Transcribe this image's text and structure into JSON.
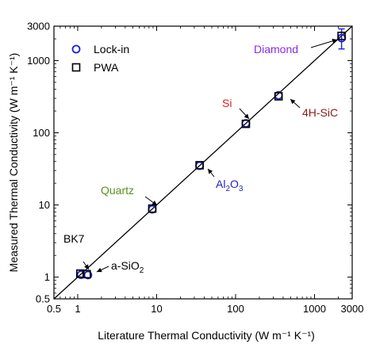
{
  "chart_data": {
    "type": "scatter",
    "xlabel": "Literature Thermal Conductivity (W m⁻¹ K⁻¹)",
    "ylabel": "Measured Thermal Conductivity (W m⁻¹ K⁻¹)",
    "xscale": "log",
    "yscale": "log",
    "xlim": [
      0.5,
      3000
    ],
    "ylim": [
      0.5,
      3000
    ],
    "xticks": [
      0.5,
      1,
      10,
      100,
      1000,
      3000
    ],
    "yticks": [
      0.5,
      1,
      10,
      100,
      1000,
      3000
    ],
    "xtick_labels": [
      "0.5",
      "1",
      "10",
      "100",
      "1000",
      "3000"
    ],
    "ytick_labels": [
      "0.5",
      "1",
      "10",
      "100",
      "1000",
      "3000"
    ],
    "grid": false,
    "legend_position": "top-left",
    "reference_line": {
      "x": [
        0.5,
        3000
      ],
      "y": [
        0.5,
        3000
      ]
    },
    "series": [
      {
        "name": "Lock-in",
        "marker": "circle",
        "color": "#1f1fd6",
        "points": [
          {
            "material": "BK7",
            "x": 1.1,
            "y": 1.08
          },
          {
            "material": "a-SiO2",
            "x": 1.35,
            "y": 1.07
          },
          {
            "material": "Quartz",
            "x": 8.8,
            "y": 8.7
          },
          {
            "material": "Al2O3",
            "x": 35,
            "y": 35
          },
          {
            "material": "Si",
            "x": 135,
            "y": 135
          },
          {
            "material": "4H-SiC",
            "x": 350,
            "y": 330
          },
          {
            "material": "Diamond",
            "x": 2200,
            "y": 2050,
            "yerr": [
              600,
              700
            ]
          }
        ]
      },
      {
        "name": "PWA",
        "marker": "square",
        "color": "#000000",
        "points": [
          {
            "material": "BK7",
            "x": 1.08,
            "y": 1.12
          },
          {
            "material": "a-SiO2",
            "x": 1.3,
            "y": 1.1
          },
          {
            "material": "Quartz",
            "x": 8.8,
            "y": 8.9
          },
          {
            "material": "Al2O3",
            "x": 35,
            "y": 35.5
          },
          {
            "material": "Si",
            "x": 135,
            "y": 133
          },
          {
            "material": "4H-SiC",
            "x": 350,
            "y": 320
          },
          {
            "material": "Diamond",
            "x": 2200,
            "y": 2200
          }
        ]
      }
    ],
    "annotations": [
      {
        "text": "BK7",
        "sub": "",
        "color": "#000000",
        "target": [
          1.1,
          1.1
        ]
      },
      {
        "text": "a-SiO",
        "sub": "2",
        "color": "#000000",
        "target": [
          1.35,
          1.08
        ]
      },
      {
        "text": "Quartz",
        "sub": "",
        "color": "#5a8f1e",
        "target": [
          8.8,
          8.8
        ]
      },
      {
        "text": "Al",
        "sub": "2",
        "text2": "O",
        "sub2": "3",
        "color": "#2323c8",
        "target": [
          35,
          35
        ]
      },
      {
        "text": "Si",
        "sub": "",
        "color": "#e01c1c",
        "target": [
          135,
          135
        ]
      },
      {
        "text": "4H-SiC",
        "sub": "",
        "color": "#8b1a1a",
        "target": [
          350,
          330
        ]
      },
      {
        "text": "Diamond",
        "sub": "",
        "color": "#8a2be2",
        "target": [
          2200,
          2100
        ]
      }
    ]
  }
}
